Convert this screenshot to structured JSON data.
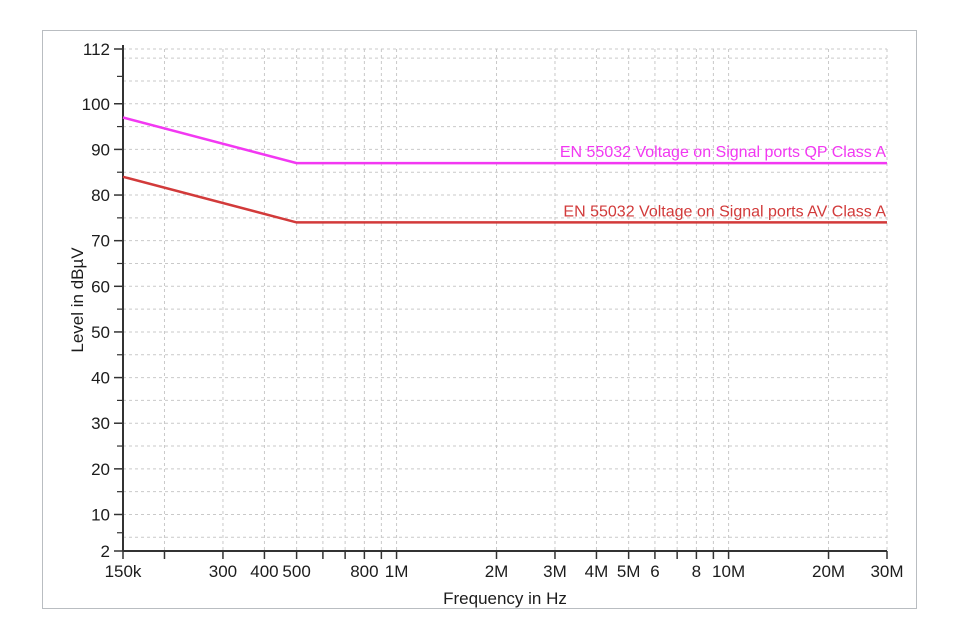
{
  "figure": {
    "xlabel": "Frequency in Hz",
    "ylabel": "Level in dBµV"
  },
  "chart_data": {
    "type": "line",
    "title": "",
    "xlabel": "Frequency in Hz",
    "ylabel": "Level in dBµV",
    "xscale": "log",
    "xlim": [
      150000,
      30000000
    ],
    "ylim": [
      2,
      112
    ],
    "grid": true,
    "x_ticks": [
      {
        "value": 150000,
        "label": "150k"
      },
      {
        "value": 200000,
        "label": ""
      },
      {
        "value": 300000,
        "label": "300"
      },
      {
        "value": 400000,
        "label": "400"
      },
      {
        "value": 500000,
        "label": "500"
      },
      {
        "value": 600000,
        "label": ""
      },
      {
        "value": 700000,
        "label": ""
      },
      {
        "value": 800000,
        "label": "800"
      },
      {
        "value": 900000,
        "label": ""
      },
      {
        "value": 1000000,
        "label": "1M"
      },
      {
        "value": 2000000,
        "label": "2M"
      },
      {
        "value": 3000000,
        "label": "3M"
      },
      {
        "value": 4000000,
        "label": "4M"
      },
      {
        "value": 5000000,
        "label": "5M"
      },
      {
        "value": 6000000,
        "label": "6"
      },
      {
        "value": 7000000,
        "label": ""
      },
      {
        "value": 8000000,
        "label": "8"
      },
      {
        "value": 9000000,
        "label": ""
      },
      {
        "value": 10000000,
        "label": "10M"
      },
      {
        "value": 20000000,
        "label": "20M"
      },
      {
        "value": 30000000,
        "label": "30M"
      }
    ],
    "y_major_ticks": [
      112,
      100,
      90,
      80,
      70,
      60,
      50,
      40,
      30,
      20,
      10,
      2
    ],
    "y_minor_ticks": [
      106,
      95,
      85,
      75,
      65,
      55,
      45,
      35,
      25,
      15,
      6
    ],
    "y_gridlines": [
      112,
      110,
      105,
      100,
      95,
      90,
      85,
      80,
      75,
      70,
      65,
      60,
      55,
      50,
      45,
      40,
      35,
      30,
      25,
      20,
      15,
      10,
      5
    ],
    "series": [
      {
        "id": "qp-class-a",
        "name": "EN 55032 Voltage on Signal ports QP Class A",
        "color": "#f238f2",
        "points": [
          [
            150000,
            97
          ],
          [
            500000,
            87
          ],
          [
            30000000,
            87
          ]
        ]
      },
      {
        "id": "av-class-a",
        "name": "EN 55032 Voltage on Signal ports AV Class A",
        "color": "#d23a3a",
        "points": [
          [
            150000,
            84
          ],
          [
            500000,
            74
          ],
          [
            30000000,
            74
          ]
        ]
      }
    ],
    "legend_position": "inline-right-above-line"
  },
  "colors": {
    "background": "#ffffff",
    "figure_border": "#b9bdc1",
    "grid": "#c9c9c9",
    "axis": "#333333",
    "tick_text": "#1c1c1c"
  }
}
